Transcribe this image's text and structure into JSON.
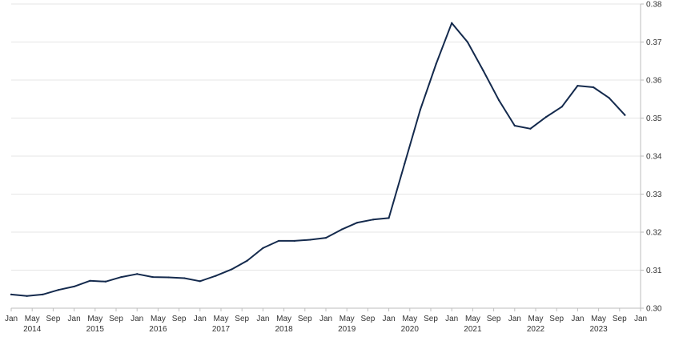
{
  "colors": {
    "line": "#142a4d",
    "grid": "#e6e6e6",
    "axis": "#bdbdbd",
    "text": "#333333"
  },
  "chart_data": {
    "type": "line",
    "title": "",
    "xlabel": "",
    "ylabel": "",
    "grid": true,
    "legend": "none",
    "ylim": [
      0.3,
      0.38
    ],
    "y_ticks": [
      "0.30",
      "0.31",
      "0.32",
      "0.33",
      "0.34",
      "0.35",
      "0.36",
      "0.37",
      "0.38"
    ],
    "x_tick_labels": [
      "Jan",
      "May",
      "Sep",
      "Jan",
      "May",
      "Sep",
      "Jan",
      "May",
      "Sep",
      "Jan",
      "May",
      "Sep",
      "Jan",
      "May",
      "Sep",
      "Jan",
      "May",
      "Sep",
      "Jan",
      "May",
      "Sep",
      "Jan",
      "May",
      "Sep",
      "Jan",
      "May",
      "Sep",
      "Jan",
      "May",
      "Sep",
      "Jan"
    ],
    "year_labels": [
      "2014",
      "2015",
      "2016",
      "2017",
      "2018",
      "2019",
      "2020",
      "2021",
      "2022",
      "2023"
    ],
    "x_range": [
      "2014-01",
      "2024-01"
    ],
    "series": [
      {
        "x": [
          "2014-01",
          "2014-04",
          "2014-07",
          "2014-10",
          "2015-01",
          "2015-04",
          "2015-07",
          "2015-10",
          "2016-01",
          "2016-04",
          "2016-07",
          "2016-10",
          "2017-01",
          "2017-04",
          "2017-07",
          "2017-10",
          "2018-01",
          "2018-04",
          "2018-07",
          "2018-10",
          "2019-01",
          "2019-04",
          "2019-07",
          "2019-10",
          "2020-01",
          "2020-04",
          "2020-07",
          "2020-10",
          "2021-01",
          "2021-04",
          "2021-07",
          "2021-10",
          "2022-01",
          "2022-04",
          "2022-07",
          "2022-10",
          "2023-01",
          "2023-04",
          "2023-07",
          "2023-10"
        ],
        "values": [
          0.3036,
          0.3032,
          0.3036,
          0.3048,
          0.3057,
          0.3072,
          0.307,
          0.3082,
          0.309,
          0.3082,
          0.3081,
          0.3079,
          0.3071,
          0.3085,
          0.3102,
          0.3125,
          0.3158,
          0.3177,
          0.3177,
          0.318,
          0.3185,
          0.3207,
          0.3225,
          0.3233,
          0.3237,
          0.338,
          0.3522,
          0.3642,
          0.375,
          0.37,
          0.3625,
          0.3547,
          0.348,
          0.3472,
          0.3503,
          0.353,
          0.3585,
          0.3581,
          0.3553,
          0.3508
        ]
      }
    ]
  }
}
